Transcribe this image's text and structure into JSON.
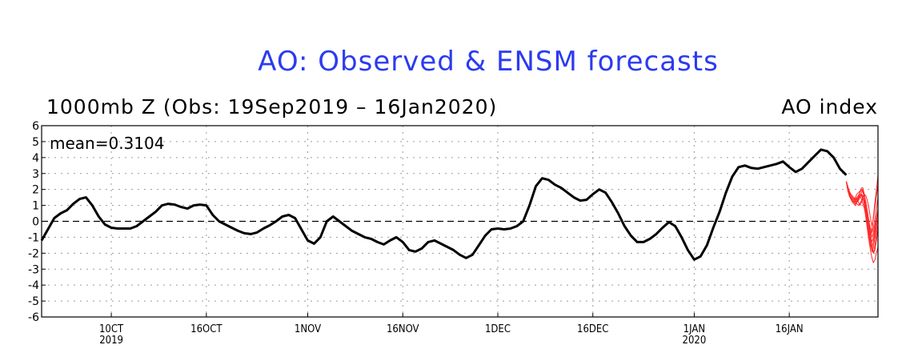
{
  "chart_data": {
    "type": "line",
    "title": "AO: Observed & ENSM forecasts",
    "subtitle_left": "1000mb Z (Obs: 19Sep2019 – 16Jan2020)",
    "subtitle_right": "AO index",
    "mean_label": "mean=0.3104",
    "ylim": [
      -6,
      6
    ],
    "y_ticks": [
      "6",
      "5",
      "4",
      "3",
      "2",
      "1",
      "0",
      "-1",
      "-2",
      "-3",
      "-4",
      "-5",
      "-6"
    ],
    "x_ticks": [
      {
        "day": 11,
        "label": "10CT",
        "year": "2019"
      },
      {
        "day": 26,
        "label": "16OCT",
        "year": ""
      },
      {
        "day": 42,
        "label": "1NOV",
        "year": ""
      },
      {
        "day": 57,
        "label": "16NOV",
        "year": ""
      },
      {
        "day": 72,
        "label": "1DEC",
        "year": ""
      },
      {
        "day": 87,
        "label": "16DEC",
        "year": ""
      },
      {
        "day": 103,
        "label": "1JAN",
        "year": "2020"
      },
      {
        "day": 118,
        "label": "16JAN",
        "year": ""
      }
    ],
    "x_range": [
      0,
      132
    ],
    "grid": true,
    "zero_line": "dashed",
    "observed": {
      "color": "#000000",
      "points": [
        [
          0,
          -1.2
        ],
        [
          1,
          -0.5
        ],
        [
          2,
          0.2
        ],
        [
          3,
          0.5
        ],
        [
          4,
          0.7
        ],
        [
          5,
          1.1
        ],
        [
          6,
          1.4
        ],
        [
          7,
          1.5
        ],
        [
          8,
          1.0
        ],
        [
          9,
          0.3
        ],
        [
          10,
          -0.2
        ],
        [
          11,
          -0.4
        ],
        [
          12,
          -0.45
        ],
        [
          13,
          -0.45
        ],
        [
          14,
          -0.45
        ],
        [
          15,
          -0.3
        ],
        [
          16,
          0.0
        ],
        [
          17,
          0.3
        ],
        [
          18,
          0.6
        ],
        [
          19,
          1.0
        ],
        [
          20,
          1.1
        ],
        [
          21,
          1.05
        ],
        [
          22,
          0.9
        ],
        [
          23,
          0.8
        ],
        [
          24,
          1.0
        ],
        [
          25,
          1.05
        ],
        [
          26,
          1.0
        ],
        [
          27,
          0.4
        ],
        [
          28,
          0.0
        ],
        [
          29,
          -0.2
        ],
        [
          30,
          -0.4
        ],
        [
          31,
          -0.6
        ],
        [
          32,
          -0.75
        ],
        [
          33,
          -0.8
        ],
        [
          34,
          -0.7
        ],
        [
          35,
          -0.45
        ],
        [
          36,
          -0.25
        ],
        [
          37,
          0.0
        ],
        [
          38,
          0.3
        ],
        [
          39,
          0.4
        ],
        [
          40,
          0.2
        ],
        [
          41,
          -0.5
        ],
        [
          42,
          -1.2
        ],
        [
          43,
          -1.4
        ],
        [
          44,
          -1.0
        ],
        [
          45,
          0.0
        ],
        [
          46,
          0.3
        ],
        [
          47,
          0.0
        ],
        [
          48,
          -0.3
        ],
        [
          49,
          -0.6
        ],
        [
          50,
          -0.8
        ],
        [
          51,
          -1.0
        ],
        [
          52,
          -1.1
        ],
        [
          53,
          -1.3
        ],
        [
          54,
          -1.45
        ],
        [
          55,
          -1.2
        ],
        [
          56,
          -1.0
        ],
        [
          57,
          -1.3
        ],
        [
          58,
          -1.8
        ],
        [
          59,
          -1.9
        ],
        [
          60,
          -1.7
        ],
        [
          61,
          -1.3
        ],
        [
          62,
          -1.2
        ],
        [
          63,
          -1.4
        ],
        [
          64,
          -1.6
        ],
        [
          65,
          -1.8
        ],
        [
          66,
          -2.1
        ],
        [
          67,
          -2.3
        ],
        [
          68,
          -2.1
        ],
        [
          69,
          -1.5
        ],
        [
          70,
          -0.9
        ],
        [
          71,
          -0.5
        ],
        [
          72,
          -0.45
        ],
        [
          73,
          -0.5
        ],
        [
          74,
          -0.45
        ],
        [
          75,
          -0.3
        ],
        [
          76,
          0.0
        ],
        [
          77,
          1.0
        ],
        [
          78,
          2.2
        ],
        [
          79,
          2.7
        ],
        [
          80,
          2.6
        ],
        [
          81,
          2.3
        ],
        [
          82,
          2.1
        ],
        [
          83,
          1.8
        ],
        [
          84,
          1.5
        ],
        [
          85,
          1.3
        ],
        [
          86,
          1.35
        ],
        [
          87,
          1.7
        ],
        [
          88,
          2.0
        ],
        [
          89,
          1.8
        ],
        [
          90,
          1.2
        ],
        [
          91,
          0.5
        ],
        [
          92,
          -0.3
        ],
        [
          93,
          -0.9
        ],
        [
          94,
          -1.3
        ],
        [
          95,
          -1.3
        ],
        [
          96,
          -1.1
        ],
        [
          97,
          -0.8
        ],
        [
          98,
          -0.4
        ],
        [
          99,
          -0.05
        ],
        [
          100,
          -0.3
        ],
        [
          101,
          -1.0
        ],
        [
          102,
          -1.8
        ],
        [
          103,
          -2.4
        ],
        [
          104,
          -2.2
        ],
        [
          105,
          -1.5
        ],
        [
          106,
          -0.4
        ],
        [
          107,
          0.6
        ],
        [
          108,
          1.8
        ],
        [
          109,
          2.8
        ],
        [
          110,
          3.4
        ],
        [
          111,
          3.5
        ],
        [
          112,
          3.35
        ],
        [
          113,
          3.3
        ],
        [
          114,
          3.4
        ],
        [
          115,
          3.5
        ],
        [
          116,
          3.6
        ],
        [
          117,
          3.75
        ],
        [
          118,
          3.4
        ],
        [
          119,
          3.1
        ],
        [
          120,
          3.3
        ],
        [
          121,
          3.7
        ],
        [
          122,
          4.1
        ],
        [
          123,
          4.5
        ],
        [
          124,
          4.4
        ],
        [
          125,
          4.0
        ],
        [
          126,
          3.3
        ],
        [
          127,
          2.9
        ]
      ]
    },
    "forecast_members": {
      "color": "#ff2a2a",
      "start_day": 127,
      "start_value": 2.5,
      "members": [
        [
          2.5,
          2.0,
          1.6,
          1.5,
          1.3,
          1.2,
          1.3,
          1.4,
          1.2,
          1.0,
          1.2,
          1.4,
          1.3,
          1.0,
          0.6,
          0.0,
          -0.6,
          -1.0,
          -0.7,
          -0.2,
          0.3,
          0.8
        ],
        [
          2.5,
          2.1,
          1.8,
          1.6,
          1.5,
          1.4,
          1.4,
          1.5,
          1.6,
          1.8,
          2.0,
          1.8,
          1.5,
          1.0,
          0.3,
          -0.3,
          -0.9,
          -1.3,
          -1.0,
          -0.4,
          0.2,
          0.6
        ],
        [
          2.5,
          2.0,
          1.7,
          1.4,
          1.2,
          1.1,
          1.0,
          1.2,
          1.5,
          1.8,
          2.1,
          2.1,
          1.6,
          0.8,
          0.0,
          -0.8,
          -1.5,
          -1.9,
          -1.6,
          -1.0,
          -0.4,
          0.2
        ],
        [
          2.5,
          2.2,
          1.9,
          1.7,
          1.6,
          1.5,
          1.3,
          1.2,
          1.3,
          1.5,
          1.7,
          1.5,
          1.0,
          0.2,
          -0.5,
          -1.2,
          -1.8,
          -2.3,
          -2.6,
          -2.4,
          -2.0,
          -1.6
        ],
        [
          2.5,
          2.0,
          1.7,
          1.6,
          1.4,
          1.3,
          1.2,
          1.1,
          1.0,
          1.1,
          1.3,
          1.5,
          1.7,
          1.6,
          1.3,
          0.8,
          0.2,
          -0.3,
          0.2,
          0.9,
          1.6,
          2.3
        ],
        [
          2.5,
          2.1,
          1.8,
          1.5,
          1.4,
          1.3,
          1.5,
          1.7,
          1.8,
          1.9,
          2.0,
          1.9,
          1.6,
          1.2,
          0.6,
          -0.2,
          -0.9,
          -0.5,
          0.3,
          1.2,
          2.0,
          2.9
        ],
        [
          2.5,
          1.9,
          1.6,
          1.4,
          1.3,
          1.2,
          1.1,
          1.2,
          1.4,
          1.6,
          1.4,
          1.1,
          0.8,
          0.3,
          -0.3,
          -0.9,
          -1.4,
          -1.8,
          -2.0,
          -1.5,
          -0.8,
          -0.2
        ],
        [
          2.5,
          2.0,
          1.8,
          1.6,
          1.5,
          1.4,
          1.3,
          1.4,
          1.5,
          1.6,
          1.7,
          1.6,
          1.2,
          0.6,
          -0.1,
          -0.7,
          -1.2,
          -1.6,
          -1.3,
          -0.7,
          0.0,
          0.7
        ],
        [
          2.5,
          2.1,
          1.7,
          1.5,
          1.3,
          1.2,
          1.2,
          1.3,
          1.4,
          1.5,
          1.8,
          2.0,
          1.7,
          1.1,
          0.4,
          -0.4,
          -1.1,
          -1.5,
          -2.0,
          -1.8,
          -1.2,
          -0.5
        ],
        [
          2.5,
          2.0,
          1.6,
          1.4,
          1.3,
          1.2,
          1.3,
          1.5,
          1.6,
          1.7,
          1.6,
          1.4,
          1.2,
          0.9,
          0.5,
          0.0,
          -0.4,
          -0.7,
          -0.4,
          0.2,
          0.8,
          1.5
        ]
      ]
    }
  }
}
